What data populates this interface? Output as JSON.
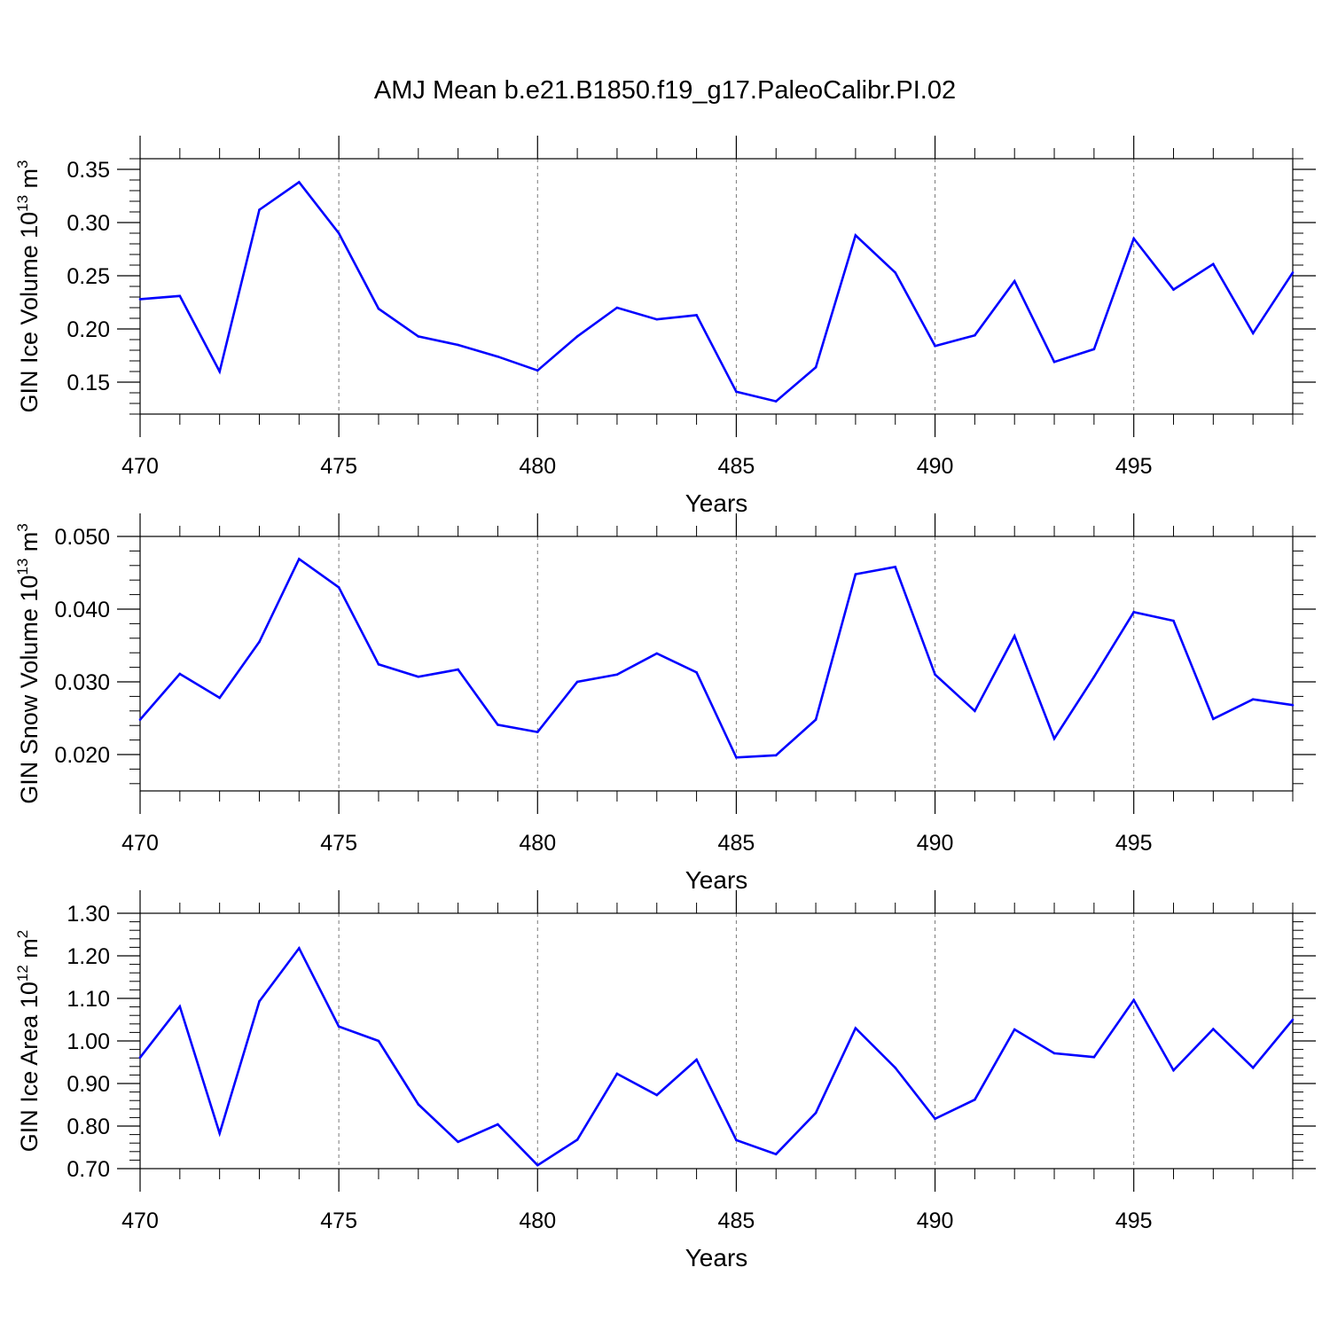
{
  "title": "AMJ Mean b.e21.B1850.f19_g17.PaleoCalibr.PI.02",
  "chart_data": [
    {
      "type": "line",
      "title": "AMJ Mean b.e21.B1850.f19_g17.PaleoCalibr.PI.02",
      "xlabel": "Years",
      "ylabel": "GIN Ice Volume 10",
      "ylabel_exponent": "13",
      "ylabel_unit": " m",
      "ylabel_unit_exponent": "3",
      "xlim": [
        470,
        499
      ],
      "ylim": [
        0.12,
        0.36
      ],
      "x_ticks": [
        470,
        475,
        480,
        485,
        490,
        495
      ],
      "x_tick_labels": [
        "470",
        "475",
        "480",
        "485",
        "490",
        "495"
      ],
      "y_ticks": [
        0.15,
        0.2,
        0.25,
        0.3,
        0.35
      ],
      "y_tick_labels": [
        "0.15",
        "0.20",
        "0.25",
        "0.30",
        "0.35"
      ],
      "grid": "vertical dashed at major x ticks",
      "color": "#0000ff",
      "x": [
        470,
        471,
        472,
        473,
        474,
        475,
        476,
        477,
        478,
        479,
        480,
        481,
        482,
        483,
        484,
        485,
        486,
        487,
        488,
        489,
        490,
        491,
        492,
        493,
        494,
        495,
        496,
        497,
        498,
        499
      ],
      "values": [
        0.228,
        0.231,
        0.16,
        0.312,
        0.338,
        0.29,
        0.219,
        0.193,
        0.185,
        0.174,
        0.161,
        0.193,
        0.22,
        0.209,
        0.213,
        0.141,
        0.132,
        0.164,
        0.288,
        0.253,
        0.184,
        0.194,
        0.245,
        0.169,
        0.181,
        0.285,
        0.237,
        0.261,
        0.196,
        0.253
      ]
    },
    {
      "type": "line",
      "xlabel": "Years",
      "ylabel": "GIN Snow Volume 10",
      "ylabel_exponent": "13",
      "ylabel_unit": " m",
      "ylabel_unit_exponent": "3",
      "xlim": [
        470,
        499
      ],
      "ylim": [
        0.015,
        0.05
      ],
      "x_ticks": [
        470,
        475,
        480,
        485,
        490,
        495
      ],
      "x_tick_labels": [
        "470",
        "475",
        "480",
        "485",
        "490",
        "495"
      ],
      "y_ticks": [
        0.02,
        0.03,
        0.04,
        0.05
      ],
      "y_tick_labels": [
        "0.020",
        "0.030",
        "0.040",
        "0.050"
      ],
      "grid": "vertical dashed at major x ticks",
      "color": "#0000ff",
      "x": [
        470,
        471,
        472,
        473,
        474,
        475,
        476,
        477,
        478,
        479,
        480,
        481,
        482,
        483,
        484,
        485,
        486,
        487,
        488,
        489,
        490,
        491,
        492,
        493,
        494,
        495,
        496,
        497,
        498,
        499
      ],
      "values": [
        0.0248,
        0.0311,
        0.0278,
        0.0355,
        0.0469,
        0.043,
        0.0324,
        0.0307,
        0.0317,
        0.0241,
        0.0231,
        0.03,
        0.031,
        0.0339,
        0.0313,
        0.0196,
        0.0199,
        0.0248,
        0.0448,
        0.0458,
        0.031,
        0.026,
        0.0363,
        0.0222,
        0.0307,
        0.0396,
        0.0384,
        0.0249,
        0.0276,
        0.0268
      ]
    },
    {
      "type": "line",
      "xlabel": "Years",
      "ylabel": "GIN Ice Area 10",
      "ylabel_exponent": "12",
      "ylabel_unit": " m",
      "ylabel_unit_exponent": "2",
      "xlim": [
        470,
        499
      ],
      "ylim": [
        0.7,
        1.3
      ],
      "x_ticks": [
        470,
        475,
        480,
        485,
        490,
        495
      ],
      "x_tick_labels": [
        "470",
        "475",
        "480",
        "485",
        "490",
        "495"
      ],
      "y_ticks": [
        0.7,
        0.8,
        0.9,
        1.0,
        1.1,
        1.2,
        1.3
      ],
      "y_tick_labels": [
        "0.70",
        "0.80",
        "0.90",
        "1.00",
        "1.10",
        "1.20",
        "1.30"
      ],
      "grid": "vertical dashed at major x ticks",
      "color": "#0000ff",
      "x": [
        470,
        471,
        472,
        473,
        474,
        475,
        476,
        477,
        478,
        479,
        480,
        481,
        482,
        483,
        484,
        485,
        486,
        487,
        488,
        489,
        490,
        491,
        492,
        493,
        494,
        495,
        496,
        497,
        498,
        499
      ],
      "values": [
        0.961,
        1.081,
        0.783,
        1.093,
        1.218,
        1.034,
        1.0,
        0.851,
        0.763,
        0.804,
        0.708,
        0.768,
        0.923,
        0.873,
        0.956,
        0.767,
        0.734,
        0.831,
        1.03,
        0.937,
        0.817,
        0.862,
        1.027,
        0.971,
        0.962,
        1.096,
        0.931,
        1.028,
        0.937,
        1.05
      ]
    }
  ]
}
